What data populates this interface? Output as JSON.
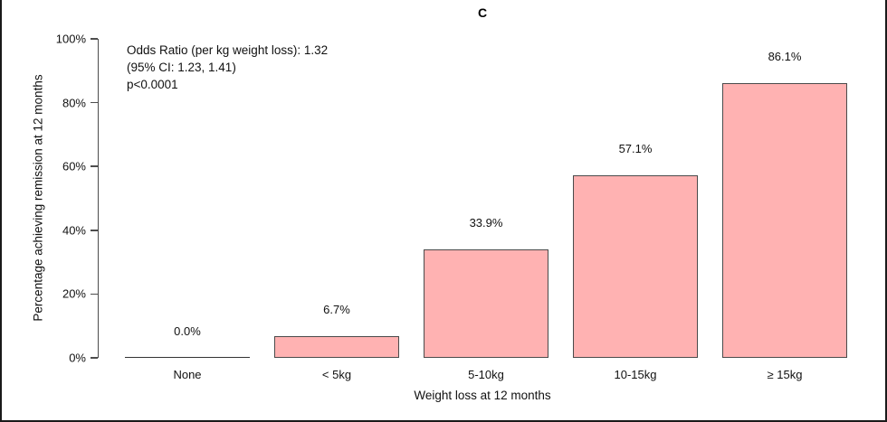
{
  "chart_data": {
    "type": "bar",
    "title": "C",
    "categories": [
      "None",
      "< 5kg",
      "5-10kg",
      "10-15kg",
      "≥ 15kg"
    ],
    "values": [
      0.0,
      6.7,
      33.9,
      57.1,
      86.1
    ],
    "value_labels": [
      "0.0%",
      "6.7%",
      "33.9%",
      "57.1%",
      "86.1%"
    ],
    "xlabel": "Weight loss at 12 months",
    "ylabel": "Percentage achieving remission at 12 months",
    "ylim": [
      0,
      100
    ],
    "yticks": [
      0,
      20,
      40,
      60,
      80,
      100
    ],
    "ytick_labels": [
      "0%",
      "20%",
      "40%",
      "60%",
      "80%",
      "100%"
    ],
    "grid": false,
    "legend_position": "none",
    "bar_fill_color": "#ffb2b2",
    "bar_border_color": "#4a4a4a",
    "annotation": {
      "line1": "Odds Ratio (per kg weight loss): 1.32",
      "line2": "(95% CI: 1.23, 1.41)",
      "line3": "p<0.0001"
    }
  }
}
